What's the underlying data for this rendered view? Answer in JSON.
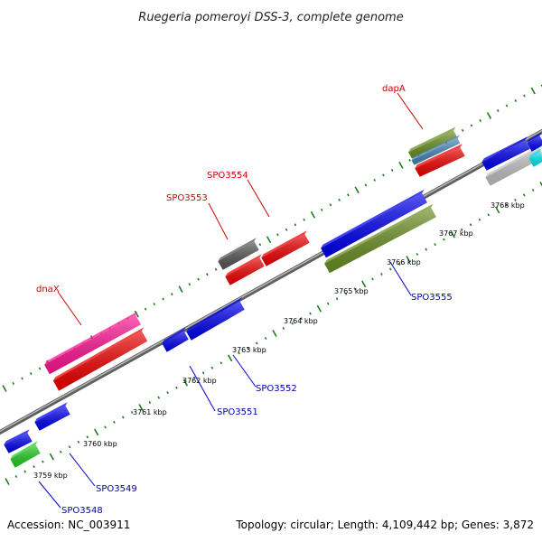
{
  "title": "Ruegeria pomeroyi DSS-3, complete genome",
  "footer": {
    "accession": "Accession: NC_003911",
    "topology": "Topology: circular; Length: 4,109,442 bp; Genes: 3,872"
  },
  "colors": {
    "backbone": "#7d7d7d",
    "tick": "#1f7a1f",
    "top_label": "#cc0000",
    "bottom_label": "#0000aa",
    "callout_top": "#cc0000",
    "callout_bottom": "#0000cc"
  },
  "kbp_labels": [
    "3759 kbp",
    "3760 kbp",
    "3761 kbp",
    "3762 kbp",
    "3763 kbp",
    "3764 kbp",
    "3765 kbp",
    "3766 kbp",
    "3767 kbp",
    "3768 kbp"
  ],
  "gene_labels_top": [
    "dnaX",
    "SPO3553",
    "SPO3554",
    "dapA"
  ],
  "gene_labels_bottom": [
    "SPO3548",
    "SPO3549",
    "SPO3551",
    "SPO3552",
    "SPO3555"
  ]
}
